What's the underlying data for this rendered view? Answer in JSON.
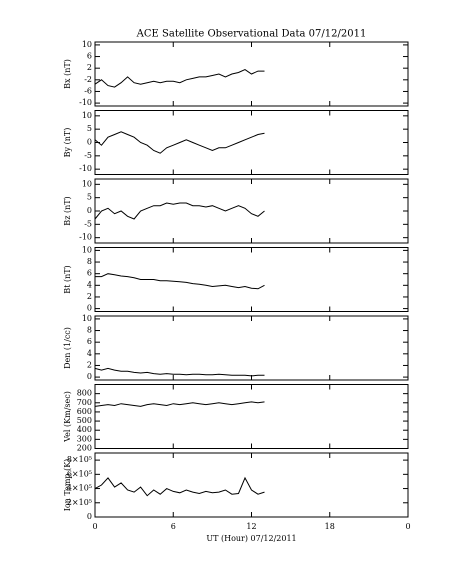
{
  "chart_data": [
    {
      "type": "line",
      "title": "ACE Satellite Observational Data  07/12/2011",
      "ylabel": "Bx (nT)",
      "x": [
        0,
        0.5,
        1,
        1.5,
        2,
        2.5,
        3,
        3.5,
        4,
        4.5,
        5,
        5.5,
        6,
        6.5,
        7,
        7.5,
        8,
        8.5,
        9,
        9.5,
        10,
        10.5,
        11,
        11.5,
        12,
        12.5,
        13
      ],
      "values": [
        -3.5,
        -2,
        -4,
        -4.5,
        -3,
        -1,
        -3,
        -3.5,
        -3,
        -2.5,
        -3,
        -2.5,
        -2.5,
        -3,
        -2,
        -1.5,
        -1,
        -1,
        -0.5,
        0,
        -1,
        0,
        0.5,
        1.5,
        0,
        1,
        1
      ],
      "color": "#000000",
      "xlim": [
        0,
        24
      ],
      "xticks": [
        0,
        6,
        12,
        18,
        {
          "value": 24,
          "label": "0"
        }
      ],
      "ylim": [
        -11,
        11
      ],
      "yticks": [
        -10,
        -6,
        -2,
        2,
        6,
        10
      ]
    },
    {
      "type": "line",
      "ylabel": "By (nT)",
      "x": [
        0,
        0.5,
        1,
        1.5,
        2,
        2.5,
        3,
        3.5,
        4,
        4.5,
        5,
        5.5,
        6,
        6.5,
        7,
        7.5,
        8,
        8.5,
        9,
        9.5,
        10,
        10.5,
        11,
        11.5,
        12,
        12.5,
        13
      ],
      "values": [
        1,
        -1,
        2,
        3,
        4,
        3,
        2,
        0,
        -1,
        -3,
        -4,
        -2,
        -1,
        0,
        1,
        0,
        -1,
        -2,
        -3,
        -2,
        -2,
        -1,
        0,
        1,
        2,
        3,
        3.5
      ],
      "color": "#000000",
      "xlim": [
        0,
        24
      ],
      "xticks": [
        0,
        6,
        12,
        18,
        {
          "value": 24,
          "label": "0"
        }
      ],
      "ylim": [
        -12,
        12
      ],
      "yticks": [
        -10,
        -5,
        0,
        5,
        10
      ]
    },
    {
      "type": "line",
      "ylabel": "Bz (nT)",
      "x": [
        0,
        0.5,
        1,
        1.5,
        2,
        2.5,
        3,
        3.5,
        4,
        4.5,
        5,
        5.5,
        6,
        6.5,
        7,
        7.5,
        8,
        8.5,
        9,
        9.5,
        10,
        10.5,
        11,
        11.5,
        12,
        12.5,
        13
      ],
      "values": [
        -3,
        0,
        1,
        -1,
        0,
        -2,
        -3,
        0,
        1,
        2,
        2,
        3,
        2.5,
        3,
        3,
        2,
        2,
        1.5,
        2,
        1,
        0,
        1,
        2,
        1,
        -1,
        -2,
        0
      ],
      "color": "#000000",
      "xlim": [
        0,
        24
      ],
      "xticks": [
        0,
        6,
        12,
        18,
        {
          "value": 24,
          "label": "0"
        }
      ],
      "ylim": [
        -12,
        12
      ],
      "yticks": [
        -10,
        -5,
        0,
        5,
        10
      ]
    },
    {
      "type": "line",
      "ylabel": "Bt (nT)",
      "x": [
        0,
        0.5,
        1,
        1.5,
        2,
        2.5,
        3,
        3.5,
        4,
        4.5,
        5,
        5.5,
        6,
        6.5,
        7,
        7.5,
        8,
        8.5,
        9,
        9.5,
        10,
        10.5,
        11,
        11.5,
        12,
        12.5,
        13
      ],
      "values": [
        5.5,
        5.5,
        6,
        5.8,
        5.6,
        5.5,
        5.3,
        5,
        5,
        5,
        4.8,
        4.8,
        4.7,
        4.6,
        4.5,
        4.3,
        4.2,
        4,
        3.8,
        3.9,
        4,
        3.8,
        3.6,
        3.8,
        3.5,
        3.4,
        4
      ],
      "color": "#000000",
      "xlim": [
        0,
        24
      ],
      "xticks": [
        0,
        6,
        12,
        18,
        {
          "value": 24,
          "label": "0"
        }
      ],
      "ylim": [
        -0.5,
        10.5
      ],
      "yticks": [
        0,
        2,
        4,
        6,
        8,
        10
      ]
    },
    {
      "type": "line",
      "ylabel": "Den (1/cc)",
      "x": [
        0,
        0.5,
        1,
        1.5,
        2,
        2.5,
        3,
        3.5,
        4,
        4.5,
        5,
        5.5,
        6,
        6.5,
        7,
        7.5,
        8,
        8.5,
        9,
        9.5,
        10,
        10.5,
        11,
        11.5,
        12,
        12.5,
        13
      ],
      "values": [
        1.5,
        1.2,
        1.5,
        1.2,
        1,
        1,
        0.8,
        0.7,
        0.8,
        0.6,
        0.5,
        0.6,
        0.5,
        0.5,
        0.4,
        0.5,
        0.5,
        0.4,
        0.4,
        0.5,
        0.4,
        0.3,
        0.3,
        0.3,
        0.2,
        0.3,
        0.3
      ],
      "color": "#000000",
      "xlim": [
        0,
        24
      ],
      "xticks": [
        0,
        6,
        12,
        18,
        {
          "value": 24,
          "label": "0"
        }
      ],
      "ylim": [
        -0.5,
        10.5
      ],
      "yticks": [
        0,
        2,
        4,
        6,
        8,
        10
      ]
    },
    {
      "type": "line",
      "ylabel": "Vel (Km/sec)",
      "x": [
        0,
        0.5,
        1,
        1.5,
        2,
        2.5,
        3,
        3.5,
        4,
        4.5,
        5,
        5.5,
        6,
        6.5,
        7,
        7.5,
        8,
        8.5,
        9,
        9.5,
        10,
        10.5,
        11,
        11.5,
        12,
        12.5,
        13
      ],
      "values": [
        660,
        670,
        680,
        670,
        690,
        680,
        670,
        660,
        680,
        690,
        680,
        670,
        690,
        680,
        690,
        700,
        690,
        680,
        690,
        700,
        690,
        680,
        690,
        700,
        710,
        700,
        710
      ],
      "color": "#000000",
      "xlim": [
        0,
        24
      ],
      "xticks": [
        0,
        6,
        12,
        18,
        {
          "value": 24,
          "label": "0"
        }
      ],
      "ylim": [
        200,
        900
      ],
      "yticks": [
        200,
        300,
        400,
        500,
        600,
        700,
        800
      ]
    },
    {
      "type": "line",
      "ylabel": "Ion Temp (K)",
      "xlabel": "UT (Hour)  07/12/2011",
      "x": [
        0,
        0.5,
        1,
        1.5,
        2,
        2.5,
        3,
        3.5,
        4,
        4.5,
        5,
        5.5,
        6,
        6.5,
        7,
        7.5,
        8,
        8.5,
        9,
        9.5,
        10,
        10.5,
        11,
        11.5,
        12,
        12.5,
        13
      ],
      "values": [
        400000,
        450000,
        550000,
        420000,
        480000,
        380000,
        350000,
        420000,
        300000,
        380000,
        320000,
        400000,
        360000,
        340000,
        380000,
        350000,
        330000,
        360000,
        340000,
        350000,
        380000,
        320000,
        330000,
        550000,
        380000,
        320000,
        350000
      ],
      "color": "#000000",
      "xlim": [
        0,
        24
      ],
      "xticks": [
        0,
        6,
        12,
        18,
        {
          "value": 24,
          "label": "0"
        }
      ],
      "ylim": [
        0,
        900000
      ],
      "yticks": [
        0,
        {
          "value": 200000,
          "label": "2×10⁵"
        },
        {
          "value": 400000,
          "label": "4×10⁵"
        },
        {
          "value": 600000,
          "label": "6×10⁵"
        },
        {
          "value": 800000,
          "label": "8×10⁵"
        }
      ]
    }
  ]
}
